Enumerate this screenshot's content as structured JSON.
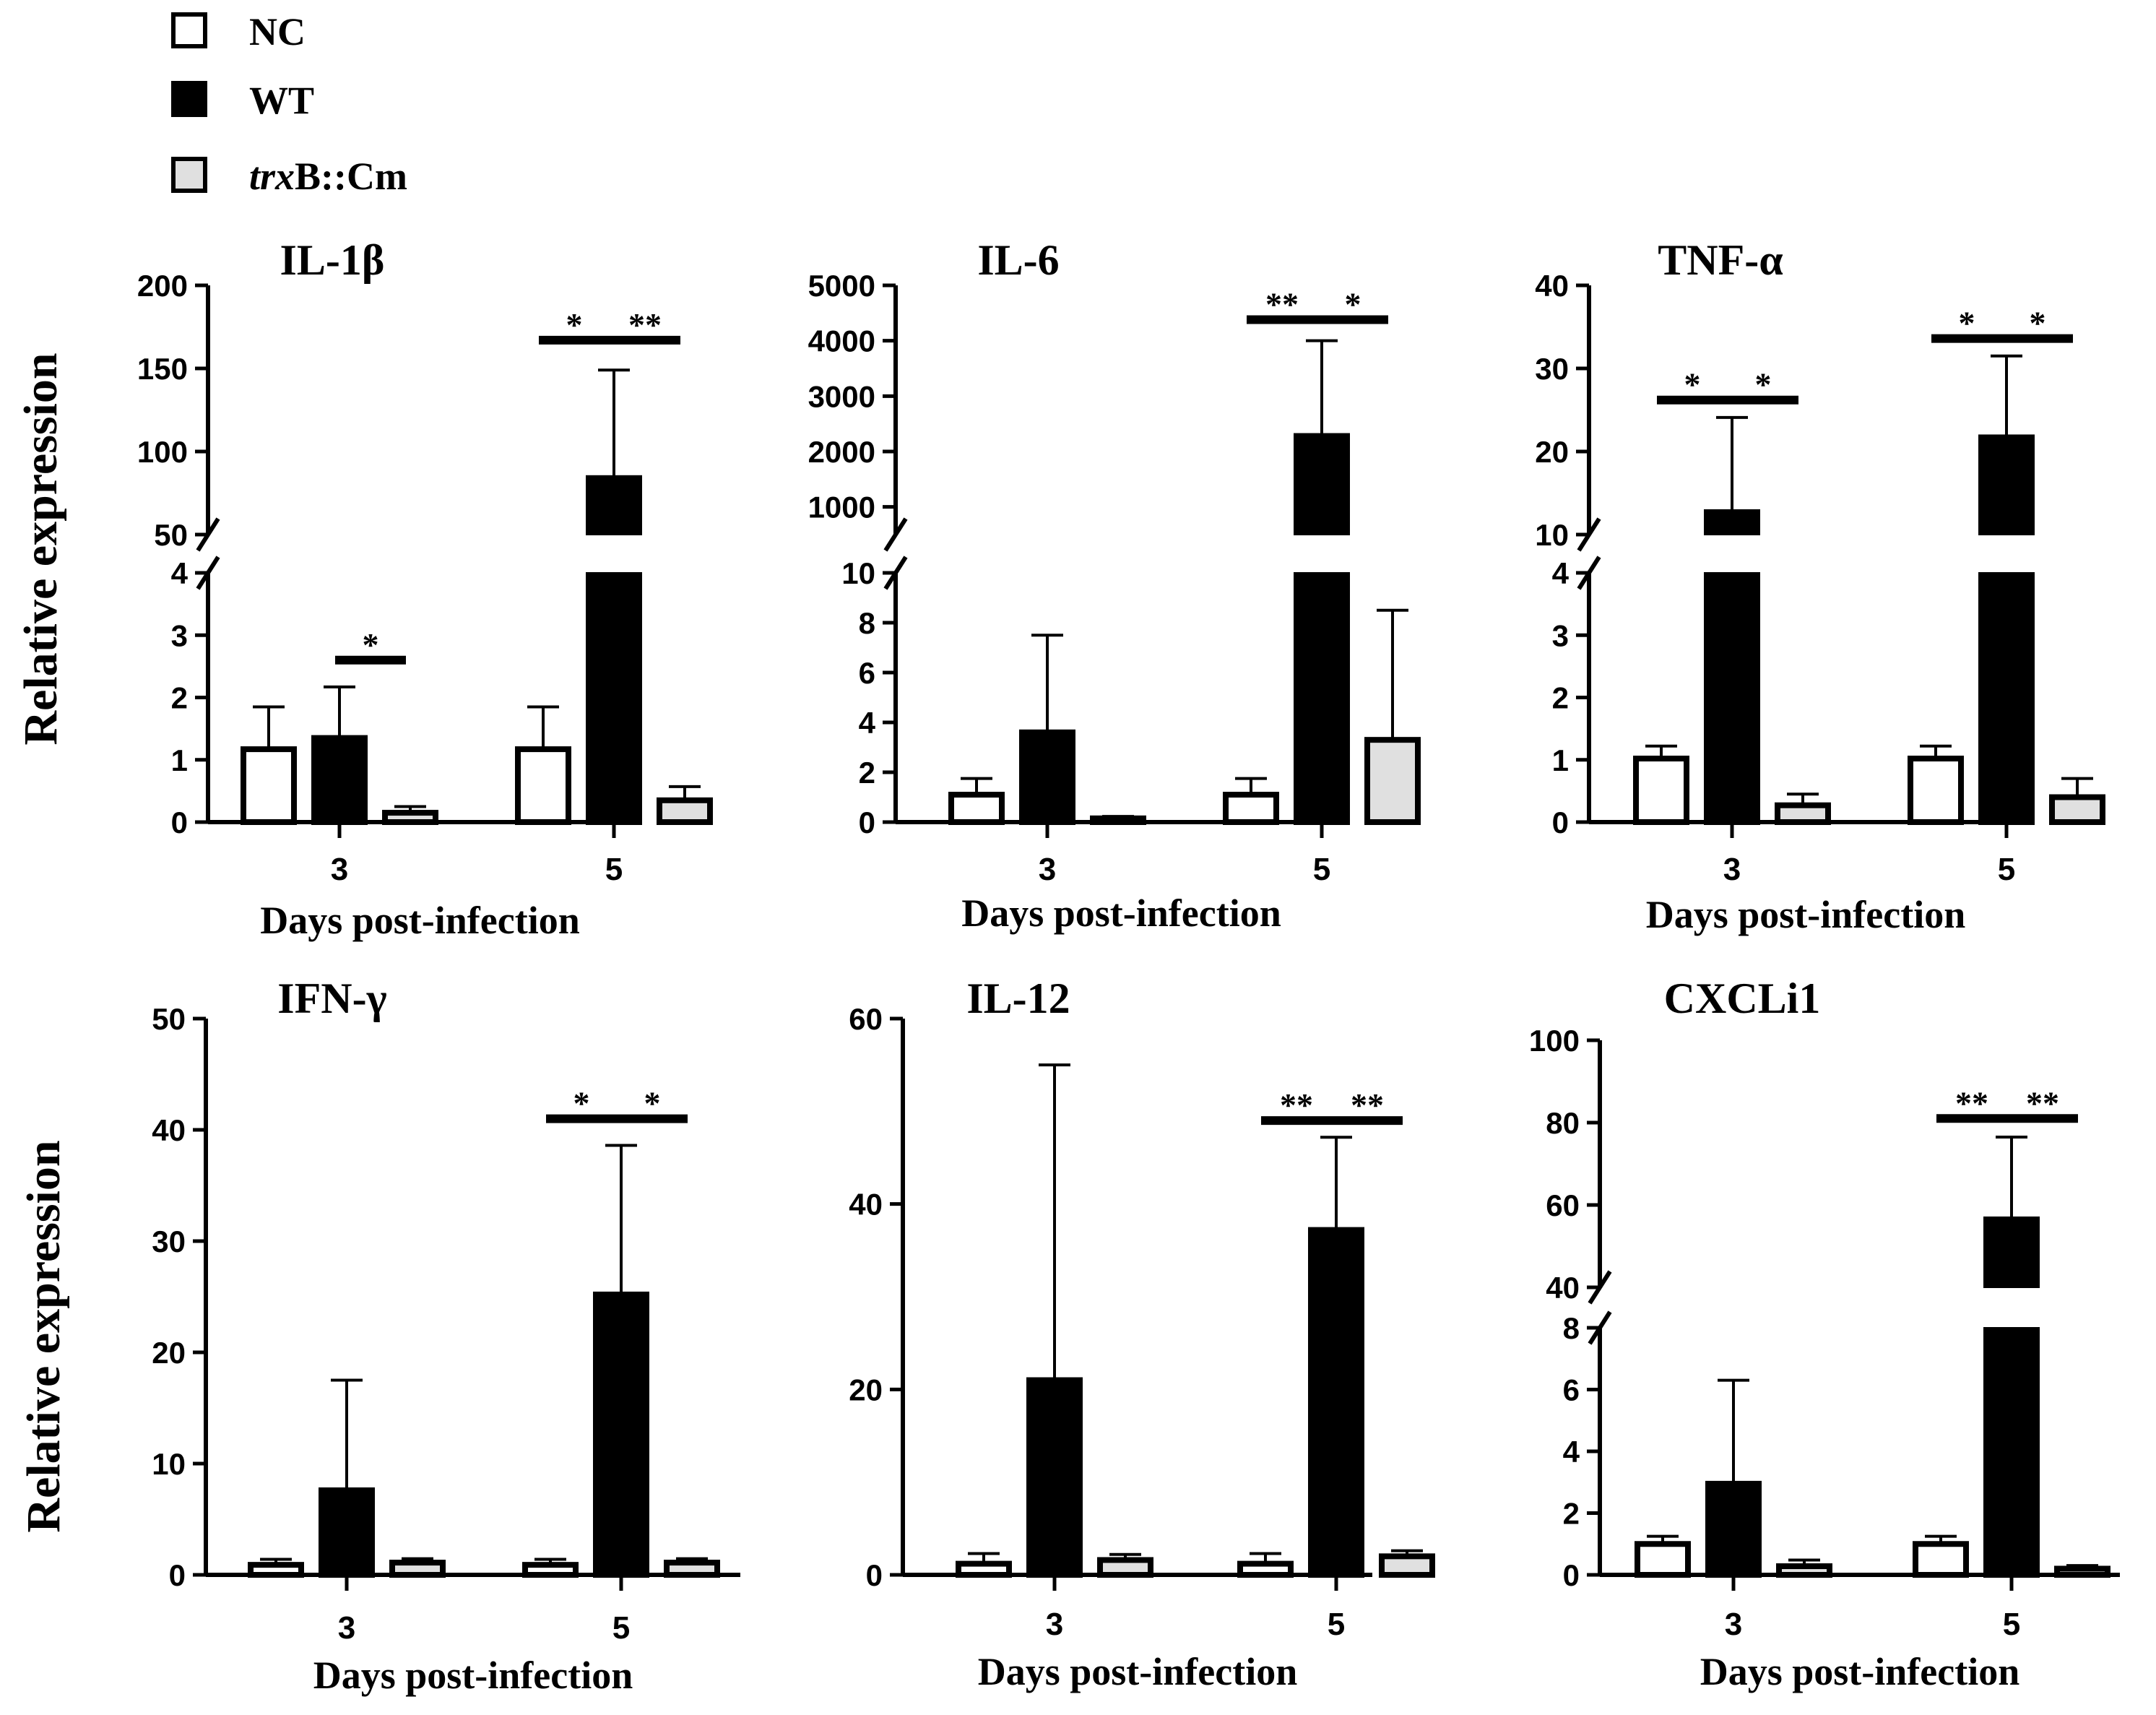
{
  "chart_data": {
    "type": "bar",
    "legend": [
      {
        "name": "NC",
        "color": "#ffffff",
        "italic_prefix": ""
      },
      {
        "name": "WT",
        "color": "#000000",
        "italic_prefix": ""
      },
      {
        "name": "B::Cm",
        "color": "#e0e0e0",
        "italic_prefix": "trx"
      }
    ],
    "ylabel": "Relative expression",
    "panels": [
      {
        "title": "IL-1β",
        "xlabel": "Days post-infection",
        "categories": [
          "3",
          "5"
        ],
        "y_break": {
          "lower": [
            0,
            4
          ],
          "lower_ticks": [
            "0",
            "1",
            "2",
            "3",
            "4"
          ],
          "upper": [
            50,
            200
          ],
          "upper_ticks": [
            "50",
            "100",
            "150",
            "200"
          ]
        },
        "series": [
          {
            "name": "NC",
            "values": [
              1.17,
              1.17
            ],
            "errors": [
              0.68,
              0.68
            ]
          },
          {
            "name": "WT",
            "values": [
              1.35,
              84
            ],
            "errors": [
              0.82,
              65
            ]
          },
          {
            "name": "trxB::Cm",
            "values": [
              0.15,
              0.35
            ],
            "errors": [
              0.1,
              0.22
            ]
          }
        ],
        "significance": [
          {
            "day": "3",
            "between": [
              "WT",
              "trxB::Cm"
            ],
            "label": "*",
            "y": 2.6
          },
          {
            "day": "5",
            "between": [
              "NC",
              "WT"
            ],
            "label": "*",
            "y": 167
          },
          {
            "day": "5",
            "between": [
              "WT",
              "trxB::Cm"
            ],
            "label": "**",
            "y": 167
          }
        ]
      },
      {
        "title": "IL-6",
        "xlabel": "Days post-infection",
        "categories": [
          "3",
          "5"
        ],
        "y_break": {
          "lower": [
            0,
            10
          ],
          "lower_ticks": [
            "0",
            "2",
            "4",
            "6",
            "8",
            "10"
          ],
          "upper": [
            500,
            5000
          ],
          "upper_ticks": [
            "1000",
            "2000",
            "3000",
            "4000",
            "5000"
          ]
        },
        "series": [
          {
            "name": "NC",
            "values": [
              1.1,
              1.1
            ],
            "errors": [
              0.65,
              0.65
            ]
          },
          {
            "name": "WT",
            "values": [
              3.6,
              2280
            ],
            "errors": [
              3.9,
              1720
            ]
          },
          {
            "name": "trxB::Cm",
            "values": [
              0.15,
              3.3
            ],
            "errors": [
              0.08,
              5.2
            ]
          }
        ],
        "significance": [
          {
            "day": "5",
            "between": [
              "NC",
              "WT"
            ],
            "label": "**",
            "y": 4380
          },
          {
            "day": "5",
            "between": [
              "WT",
              "trxB::Cm"
            ],
            "label": "*",
            "y": 4380
          }
        ]
      },
      {
        "title": "TNF-α",
        "xlabel": "Days post-infection",
        "categories": [
          "3",
          "5"
        ],
        "y_break": {
          "lower": [
            0,
            4
          ],
          "lower_ticks": [
            "0",
            "1",
            "2",
            "3",
            "4"
          ],
          "upper": [
            10,
            40
          ],
          "upper_ticks": [
            "10",
            "20",
            "30",
            "40"
          ]
        },
        "series": [
          {
            "name": "NC",
            "values": [
              1.02,
              1.02
            ],
            "errors": [
              0.2,
              0.2
            ]
          },
          {
            "name": "WT",
            "values": [
              12.7,
              21.7
            ],
            "errors": [
              11.4,
              9.8
            ]
          },
          {
            "name": "trxB::Cm",
            "values": [
              0.27,
              0.4
            ],
            "errors": [
              0.18,
              0.3
            ]
          }
        ],
        "significance": [
          {
            "day": "3",
            "between": [
              "NC",
              "WT"
            ],
            "label": "*",
            "y": 26.2
          },
          {
            "day": "3",
            "between": [
              "WT",
              "trxB::Cm"
            ],
            "label": "*",
            "y": 26.2
          },
          {
            "day": "5",
            "between": [
              "NC",
              "WT"
            ],
            "label": "*",
            "y": 33.6
          },
          {
            "day": "5",
            "between": [
              "WT",
              "trxB::Cm"
            ],
            "label": "*",
            "y": 33.6
          }
        ]
      },
      {
        "title": "IFN-γ",
        "xlabel": "Days post-infection",
        "categories": [
          "3",
          "5"
        ],
        "ylim": [
          0,
          50
        ],
        "ticks": [
          "0",
          "10",
          "20",
          "30",
          "40",
          "50"
        ],
        "series": [
          {
            "name": "NC",
            "values": [
              0.9,
              0.9
            ],
            "errors": [
              0.5,
              0.5
            ]
          },
          {
            "name": "WT",
            "values": [
              7.6,
              25.2
            ],
            "errors": [
              9.9,
              13.4
            ]
          },
          {
            "name": "trxB::Cm",
            "values": [
              1.1,
              1.1
            ],
            "errors": [
              0.35,
              0.35
            ]
          }
        ],
        "significance": [
          {
            "day": "5",
            "between": [
              "NC",
              "WT"
            ],
            "label": "*",
            "y": 41
          },
          {
            "day": "5",
            "between": [
              "WT",
              "trxB::Cm"
            ],
            "label": "*",
            "y": 41
          }
        ]
      },
      {
        "title": "IL-12",
        "xlabel": "Days post-infection",
        "categories": [
          "3",
          "5"
        ],
        "ylim": [
          0,
          60
        ],
        "ticks": [
          "0",
          "20",
          "40",
          "60"
        ],
        "series": [
          {
            "name": "NC",
            "values": [
              1.2,
              1.2
            ],
            "errors": [
              1.1,
              1.1
            ]
          },
          {
            "name": "WT",
            "values": [
              21,
              37.2
            ],
            "errors": [
              34,
              10
            ]
          },
          {
            "name": "trxB::Cm",
            "values": [
              1.6,
              2.0
            ],
            "errors": [
              0.6,
              0.6
            ]
          }
        ],
        "significance": [
          {
            "day": "5",
            "between": [
              "NC",
              "WT"
            ],
            "label": "**",
            "y": 49
          },
          {
            "day": "5",
            "between": [
              "WT",
              "trxB::Cm"
            ],
            "label": "**",
            "y": 49
          }
        ]
      },
      {
        "title": "CXCLi1",
        "xlabel": "Days post-infection",
        "categories": [
          "3",
          "5"
        ],
        "y_break": {
          "lower": [
            0,
            8
          ],
          "lower_ticks": [
            "0",
            "2",
            "4",
            "6",
            "8"
          ],
          "upper": [
            40,
            100
          ],
          "upper_ticks": [
            "40",
            "60",
            "80",
            "100"
          ]
        },
        "series": [
          {
            "name": "NC",
            "values": [
              1.0,
              1.0
            ],
            "errors": [
              0.25,
              0.25
            ]
          },
          {
            "name": "WT",
            "values": [
              2.95,
              56.5
            ],
            "errors": [
              3.35,
              20
            ]
          },
          {
            "name": "trxB::Cm",
            "values": [
              0.28,
              0.2
            ],
            "errors": [
              0.2,
              0.1
            ]
          }
        ],
        "significance": [
          {
            "day": "5",
            "between": [
              "NC",
              "WT"
            ],
            "label": "**",
            "y": 81
          },
          {
            "day": "5",
            "between": [
              "WT",
              "trxB::Cm"
            ],
            "label": "**",
            "y": 81
          }
        ]
      }
    ]
  }
}
